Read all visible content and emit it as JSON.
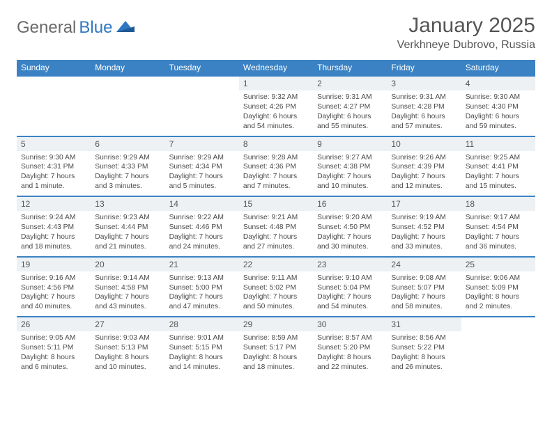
{
  "brand": {
    "name1": "General",
    "name2": "Blue"
  },
  "title": "January 2025",
  "location": "Verkhneye Dubrovo, Russia",
  "colors": {
    "header_bg": "#3a82c4",
    "daynum_bg": "#eef1f3",
    "rule": "#3a82c4",
    "text": "#4a4a4a",
    "brand_gray": "#6a6a6a",
    "brand_blue": "#2f78c1"
  },
  "weekdays": [
    "Sunday",
    "Monday",
    "Tuesday",
    "Wednesday",
    "Thursday",
    "Friday",
    "Saturday"
  ],
  "weeks": [
    [
      {
        "n": "",
        "sr": "",
        "ss": "",
        "dl": ""
      },
      {
        "n": "",
        "sr": "",
        "ss": "",
        "dl": ""
      },
      {
        "n": "",
        "sr": "",
        "ss": "",
        "dl": ""
      },
      {
        "n": "1",
        "sr": "9:32 AM",
        "ss": "4:26 PM",
        "dl": "6 hours and 54 minutes."
      },
      {
        "n": "2",
        "sr": "9:31 AM",
        "ss": "4:27 PM",
        "dl": "6 hours and 55 minutes."
      },
      {
        "n": "3",
        "sr": "9:31 AM",
        "ss": "4:28 PM",
        "dl": "6 hours and 57 minutes."
      },
      {
        "n": "4",
        "sr": "9:30 AM",
        "ss": "4:30 PM",
        "dl": "6 hours and 59 minutes."
      }
    ],
    [
      {
        "n": "5",
        "sr": "9:30 AM",
        "ss": "4:31 PM",
        "dl": "7 hours and 1 minute."
      },
      {
        "n": "6",
        "sr": "9:29 AM",
        "ss": "4:33 PM",
        "dl": "7 hours and 3 minutes."
      },
      {
        "n": "7",
        "sr": "9:29 AM",
        "ss": "4:34 PM",
        "dl": "7 hours and 5 minutes."
      },
      {
        "n": "8",
        "sr": "9:28 AM",
        "ss": "4:36 PM",
        "dl": "7 hours and 7 minutes."
      },
      {
        "n": "9",
        "sr": "9:27 AM",
        "ss": "4:38 PM",
        "dl": "7 hours and 10 minutes."
      },
      {
        "n": "10",
        "sr": "9:26 AM",
        "ss": "4:39 PM",
        "dl": "7 hours and 12 minutes."
      },
      {
        "n": "11",
        "sr": "9:25 AM",
        "ss": "4:41 PM",
        "dl": "7 hours and 15 minutes."
      }
    ],
    [
      {
        "n": "12",
        "sr": "9:24 AM",
        "ss": "4:43 PM",
        "dl": "7 hours and 18 minutes."
      },
      {
        "n": "13",
        "sr": "9:23 AM",
        "ss": "4:44 PM",
        "dl": "7 hours and 21 minutes."
      },
      {
        "n": "14",
        "sr": "9:22 AM",
        "ss": "4:46 PM",
        "dl": "7 hours and 24 minutes."
      },
      {
        "n": "15",
        "sr": "9:21 AM",
        "ss": "4:48 PM",
        "dl": "7 hours and 27 minutes."
      },
      {
        "n": "16",
        "sr": "9:20 AM",
        "ss": "4:50 PM",
        "dl": "7 hours and 30 minutes."
      },
      {
        "n": "17",
        "sr": "9:19 AM",
        "ss": "4:52 PM",
        "dl": "7 hours and 33 minutes."
      },
      {
        "n": "18",
        "sr": "9:17 AM",
        "ss": "4:54 PM",
        "dl": "7 hours and 36 minutes."
      }
    ],
    [
      {
        "n": "19",
        "sr": "9:16 AM",
        "ss": "4:56 PM",
        "dl": "7 hours and 40 minutes."
      },
      {
        "n": "20",
        "sr": "9:14 AM",
        "ss": "4:58 PM",
        "dl": "7 hours and 43 minutes."
      },
      {
        "n": "21",
        "sr": "9:13 AM",
        "ss": "5:00 PM",
        "dl": "7 hours and 47 minutes."
      },
      {
        "n": "22",
        "sr": "9:11 AM",
        "ss": "5:02 PM",
        "dl": "7 hours and 50 minutes."
      },
      {
        "n": "23",
        "sr": "9:10 AM",
        "ss": "5:04 PM",
        "dl": "7 hours and 54 minutes."
      },
      {
        "n": "24",
        "sr": "9:08 AM",
        "ss": "5:07 PM",
        "dl": "7 hours and 58 minutes."
      },
      {
        "n": "25",
        "sr": "9:06 AM",
        "ss": "5:09 PM",
        "dl": "8 hours and 2 minutes."
      }
    ],
    [
      {
        "n": "26",
        "sr": "9:05 AM",
        "ss": "5:11 PM",
        "dl": "8 hours and 6 minutes."
      },
      {
        "n": "27",
        "sr": "9:03 AM",
        "ss": "5:13 PM",
        "dl": "8 hours and 10 minutes."
      },
      {
        "n": "28",
        "sr": "9:01 AM",
        "ss": "5:15 PM",
        "dl": "8 hours and 14 minutes."
      },
      {
        "n": "29",
        "sr": "8:59 AM",
        "ss": "5:17 PM",
        "dl": "8 hours and 18 minutes."
      },
      {
        "n": "30",
        "sr": "8:57 AM",
        "ss": "5:20 PM",
        "dl": "8 hours and 22 minutes."
      },
      {
        "n": "31",
        "sr": "8:56 AM",
        "ss": "5:22 PM",
        "dl": "8 hours and 26 minutes."
      },
      {
        "n": "",
        "sr": "",
        "ss": "",
        "dl": ""
      }
    ]
  ],
  "labels": {
    "sunrise": "Sunrise:",
    "sunset": "Sunset:",
    "daylight": "Daylight:"
  }
}
